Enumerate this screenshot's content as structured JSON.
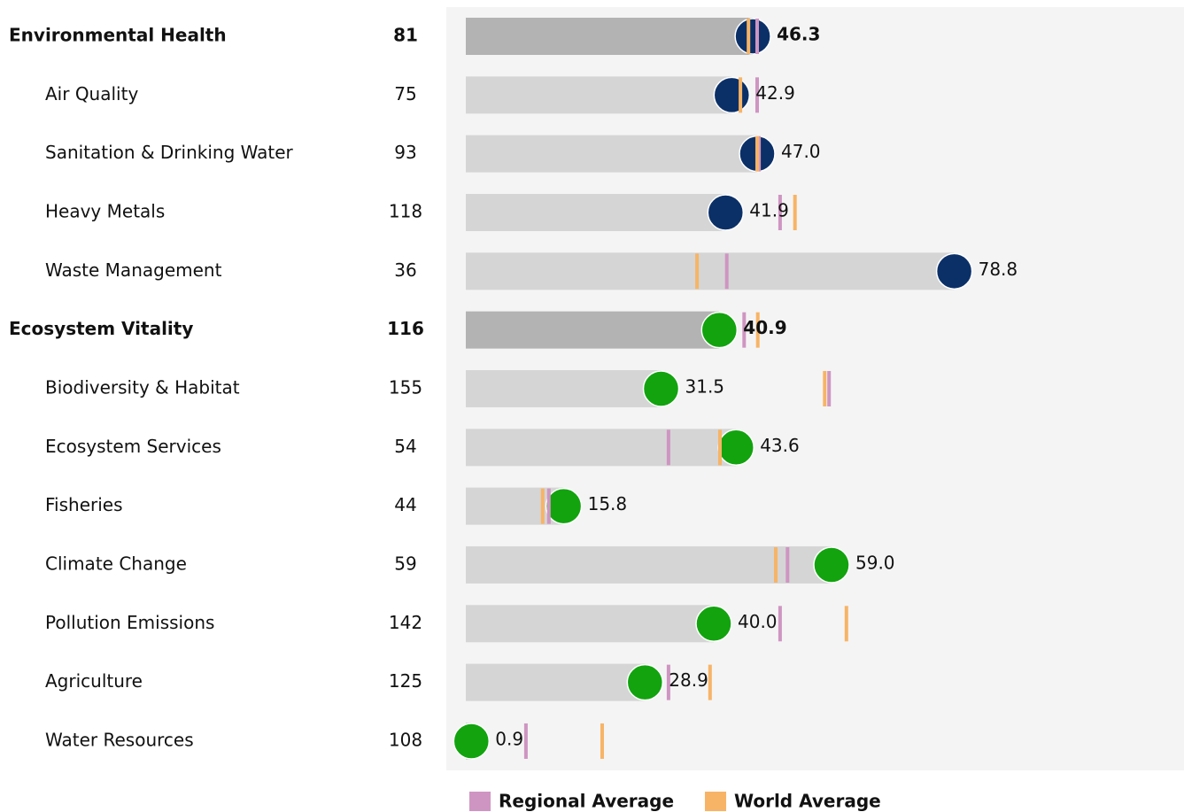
{
  "chart_data": {
    "type": "bar",
    "xlim": [
      0,
      115
    ],
    "legend": [
      {
        "name": "Regional Average",
        "color": "#cf95c2"
      },
      {
        "name": "World Average",
        "color": "#f7b466"
      }
    ],
    "groups": [
      {
        "name": "Environmental Health",
        "rank": 81,
        "value": 46.3,
        "value_label": "46.3",
        "regional": 47.0,
        "world": 45.6,
        "color": "#0b3068",
        "items": [
          {
            "name": "Air Quality",
            "rank": 75,
            "value": 42.9,
            "value_label": "42.9",
            "regional": 47.0,
            "world": 44.3
          },
          {
            "name": "Sanitation & Drinking Water",
            "rank": 93,
            "value": 47.0,
            "value_label": "47.0",
            "regional": 47.3,
            "world": 47.0
          },
          {
            "name": "Heavy Metals",
            "rank": 118,
            "value": 41.9,
            "value_label": "41.9",
            "regional": 50.7,
            "world": 53.1
          },
          {
            "name": "Waste Management",
            "rank": 36,
            "value": 78.8,
            "value_label": "78.8",
            "regional": 42.1,
            "world": 37.3
          }
        ]
      },
      {
        "name": "Ecosystem Vitality",
        "rank": 116,
        "value": 40.9,
        "value_label": "40.9",
        "regional": 44.9,
        "world": 47.1,
        "color": "#12a30f",
        "items": [
          {
            "name": "Biodiversity & Habitat",
            "rank": 155,
            "value": 31.5,
            "value_label": "31.5",
            "regional": 58.6,
            "world": 57.9
          },
          {
            "name": "Ecosystem Services",
            "rank": 54,
            "value": 43.6,
            "value_label": "43.6",
            "regional": 32.7,
            "world": 41.0
          },
          {
            "name": "Fisheries",
            "rank": 44,
            "value": 15.8,
            "value_label": "15.8",
            "regional": 13.4,
            "world": 12.4
          },
          {
            "name": "Climate Change",
            "rank": 59,
            "value": 59.0,
            "value_label": "59.0",
            "regional": 51.9,
            "world": 50.0
          },
          {
            "name": "Pollution Emissions",
            "rank": 142,
            "value": 40.0,
            "value_label": "40.0",
            "regional": 50.7,
            "world": 61.4
          },
          {
            "name": "Agriculture",
            "rank": 125,
            "value": 28.9,
            "value_label": "28.9",
            "regional": 32.7,
            "world": 39.4
          },
          {
            "name": "Water Resources",
            "rank": 108,
            "value": 0.9,
            "value_label": "0.9",
            "regional": 9.7,
            "world": 22.0
          }
        ]
      }
    ]
  }
}
